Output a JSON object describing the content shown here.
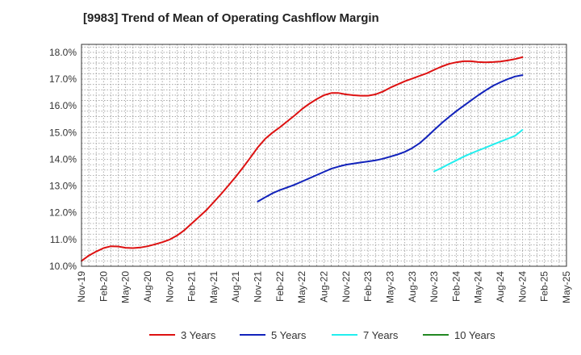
{
  "chart_data": {
    "type": "line",
    "title": "[9983]  Trend of Mean of Operating Cashflow Margin",
    "xlabel": "",
    "ylabel": "",
    "x_start": "Nov-19",
    "x_tick_labels": [
      "Nov-19",
      "Feb-20",
      "May-20",
      "Aug-20",
      "Nov-20",
      "Feb-21",
      "May-21",
      "Aug-21",
      "Nov-21",
      "Feb-22",
      "May-22",
      "Aug-22",
      "Nov-22",
      "Feb-23",
      "May-23",
      "Aug-23",
      "Nov-23",
      "Feb-24",
      "May-24",
      "Aug-24",
      "Nov-24",
      "Feb-25",
      "May-25"
    ],
    "y_tick_labels": [
      "10.0%",
      "11.0%",
      "12.0%",
      "13.0%",
      "14.0%",
      "15.0%",
      "16.0%",
      "17.0%",
      "18.0%"
    ],
    "ylim": [
      10.0,
      18.3
    ],
    "grid": true,
    "legend_position": "bottom",
    "series": [
      {
        "name": "3 Years",
        "color": "#dd1111",
        "x": [
          "Nov-19",
          "Dec-19",
          "Jan-20",
          "Feb-20",
          "Mar-20",
          "Apr-20",
          "May-20",
          "Jun-20",
          "Jul-20",
          "Aug-20",
          "Sep-20",
          "Oct-20",
          "Nov-20",
          "Dec-20",
          "Jan-21",
          "Feb-21",
          "Mar-21",
          "Apr-21",
          "May-21",
          "Jun-21",
          "Jul-21",
          "Aug-21",
          "Sep-21",
          "Oct-21",
          "Nov-21",
          "Dec-21",
          "Jan-22",
          "Feb-22",
          "Mar-22",
          "Apr-22",
          "May-22",
          "Jun-22",
          "Jul-22",
          "Aug-22",
          "Sep-22",
          "Oct-22",
          "Nov-22",
          "Dec-22",
          "Jan-23",
          "Feb-23",
          "Mar-23",
          "Apr-23",
          "May-23",
          "Jun-23",
          "Jul-23",
          "Aug-23",
          "Sep-23",
          "Oct-23",
          "Nov-23",
          "Dec-23",
          "Jan-24",
          "Feb-24",
          "Mar-24",
          "Apr-24",
          "May-24",
          "Jun-24",
          "Jul-24",
          "Aug-24",
          "Sep-24",
          "Oct-24",
          "Nov-24"
        ],
        "values": [
          10.2,
          10.4,
          10.55,
          10.68,
          10.75,
          10.74,
          10.69,
          10.68,
          10.7,
          10.75,
          10.82,
          10.9,
          11.0,
          11.15,
          11.35,
          11.6,
          11.85,
          12.1,
          12.4,
          12.7,
          13.02,
          13.35,
          13.7,
          14.07,
          14.45,
          14.77,
          15.0,
          15.2,
          15.42,
          15.64,
          15.88,
          16.08,
          16.25,
          16.4,
          16.48,
          16.48,
          16.43,
          16.4,
          16.38,
          16.38,
          16.43,
          16.53,
          16.68,
          16.8,
          16.92,
          17.02,
          17.12,
          17.22,
          17.35,
          17.47,
          17.57,
          17.63,
          17.67,
          17.67,
          17.64,
          17.63,
          17.64,
          17.66,
          17.7,
          17.75,
          17.82
        ]
      },
      {
        "name": "5 Years",
        "color": "#1122bb",
        "x": [
          "Nov-21",
          "Dec-21",
          "Jan-22",
          "Feb-22",
          "Mar-22",
          "Apr-22",
          "May-22",
          "Jun-22",
          "Jul-22",
          "Aug-22",
          "Sep-22",
          "Oct-22",
          "Nov-22",
          "Dec-22",
          "Jan-23",
          "Feb-23",
          "Mar-23",
          "Apr-23",
          "May-23",
          "Jun-23",
          "Jul-23",
          "Aug-23",
          "Sep-23",
          "Oct-23",
          "Nov-23",
          "Dec-23",
          "Jan-24",
          "Feb-24",
          "Mar-24",
          "Apr-24",
          "May-24",
          "Jun-24",
          "Jul-24",
          "Aug-24",
          "Sep-24",
          "Oct-24",
          "Nov-24"
        ],
        "values": [
          12.42,
          12.58,
          12.73,
          12.85,
          12.95,
          13.05,
          13.17,
          13.29,
          13.41,
          13.53,
          13.65,
          13.73,
          13.8,
          13.84,
          13.88,
          13.92,
          13.96,
          14.02,
          14.1,
          14.18,
          14.28,
          14.42,
          14.6,
          14.84,
          15.1,
          15.35,
          15.58,
          15.8,
          16.0,
          16.2,
          16.4,
          16.58,
          16.75,
          16.88,
          17.0,
          17.1,
          17.15
        ]
      },
      {
        "name": "7 Years",
        "color": "#22eeee",
        "x": [
          "Nov-23",
          "Dec-23",
          "Jan-24",
          "Feb-24",
          "Mar-24",
          "Apr-24",
          "May-24",
          "Jun-24",
          "Jul-24",
          "Aug-24",
          "Sep-24",
          "Oct-24",
          "Nov-24"
        ],
        "values": [
          13.55,
          13.68,
          13.82,
          13.96,
          14.1,
          14.22,
          14.33,
          14.44,
          14.55,
          14.66,
          14.77,
          14.88,
          15.1
        ]
      },
      {
        "name": "10 Years",
        "color": "#228822",
        "x": [],
        "values": []
      }
    ]
  }
}
